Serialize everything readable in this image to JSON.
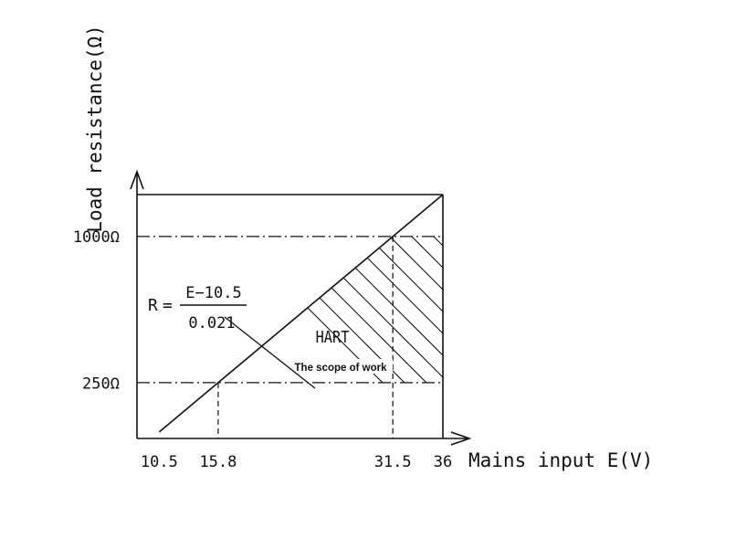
{
  "chart_data": {
    "type": "area",
    "title": "",
    "xlabel": "Mains input E(V)",
    "ylabel": "Load resistance(Ω)",
    "x_ticks": [
      "10.5",
      "15.8",
      "31.5",
      "36"
    ],
    "y_ticks": [
      "1000Ω",
      "250Ω"
    ],
    "series": [
      {
        "x": [
          10.5,
          15.8,
          31.5,
          36
        ],
        "y": [
          0,
          252.4,
          1000,
          1214.3
        ]
      }
    ],
    "formula": {
      "lhs": "R",
      "eq": "=",
      "numerator": "E−10.5",
      "denominator": "0.021"
    },
    "region_label": "HART",
    "region_caption": "The scope of work",
    "xlim": [
      8.5,
      36
    ],
    "ylim": [
      -33,
      1214.3
    ],
    "grid": false,
    "legend": "none",
    "colors": {
      "line": "#111111",
      "background": "#ffffff"
    }
  }
}
